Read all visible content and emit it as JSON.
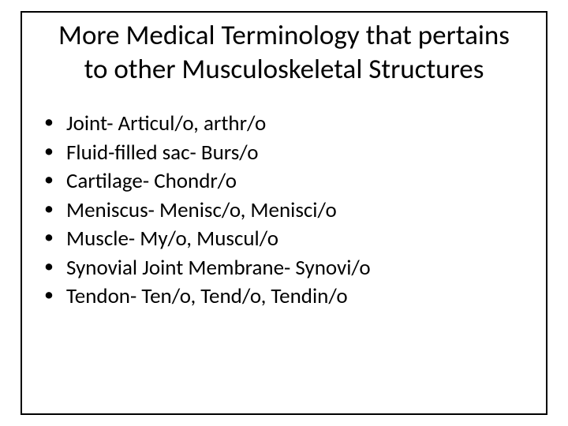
{
  "slide": {
    "title": "More Medical Terminology that pertains to other Musculoskeletal Structures",
    "bullets": [
      "Joint- Articul/o, arthr/o",
      "Fluid-filled sac- Burs/o",
      "Cartilage- Chondr/o",
      "Meniscus- Menisc/o, Menisci/o",
      "Muscle- My/o, Muscul/o",
      "Synovial Joint Membrane- Synovi/o",
      "Tendon- Ten/o, Tend/o, Tendin/o"
    ],
    "border_color": "#000000",
    "background_color": "#ffffff",
    "text_color": "#000000",
    "title_fontsize": 35,
    "bullet_fontsize": 27
  }
}
